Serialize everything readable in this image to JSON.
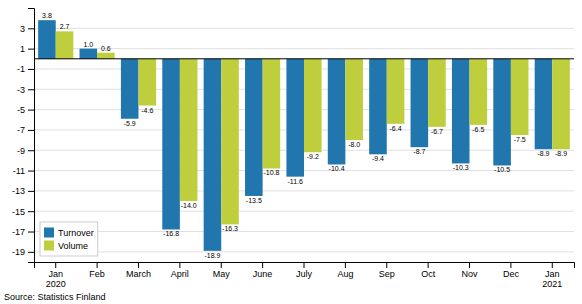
{
  "chart_data": {
    "type": "bar",
    "categories": [
      "Jan\n2020",
      "Feb",
      "March",
      "April",
      "May",
      "June",
      "July",
      "Aug",
      "Sep",
      "Oct",
      "Nov",
      "Dec",
      "Jan\n2021"
    ],
    "series": [
      {
        "name": "Turnover",
        "color": "#2176AE",
        "values": [
          3.8,
          1.0,
          -5.9,
          -16.8,
          -18.9,
          -13.5,
          -11.6,
          -10.4,
          -9.4,
          -8.7,
          -10.3,
          -10.5,
          -8.9
        ],
        "value_labels": [
          "3.8",
          "1.0",
          "-5.9",
          "-16.8",
          "-18.9",
          "-13.5",
          "-11.6",
          "-10.4",
          "-9.4",
          "-8.7",
          "-10.3",
          "-10.5",
          "-8.9"
        ]
      },
      {
        "name": "Volume",
        "color": "#BFCE3C",
        "values": [
          2.7,
          0.6,
          -4.6,
          -14.0,
          -16.3,
          -10.8,
          -9.2,
          -8.0,
          -6.4,
          -6.7,
          -6.5,
          -7.5,
          -8.9
        ],
        "value_labels": [
          "2.7",
          "0.6",
          "-4.6",
          "-14.0",
          "-16.3",
          "-10.8",
          "-9.2",
          "-8.0",
          "-6.4",
          "-6.7",
          "-6.5",
          "-7.5",
          "-8.9"
        ]
      }
    ],
    "ylim": [
      -20,
      5
    ],
    "yticks": [
      3,
      1,
      -1,
      -3,
      -5,
      -7,
      -9,
      -11,
      -13,
      -15,
      -17,
      -19
    ],
    "grid": true,
    "legend": "lower left",
    "data_labels": true,
    "annotations": [
      "Source: Statistics Finland"
    ]
  }
}
